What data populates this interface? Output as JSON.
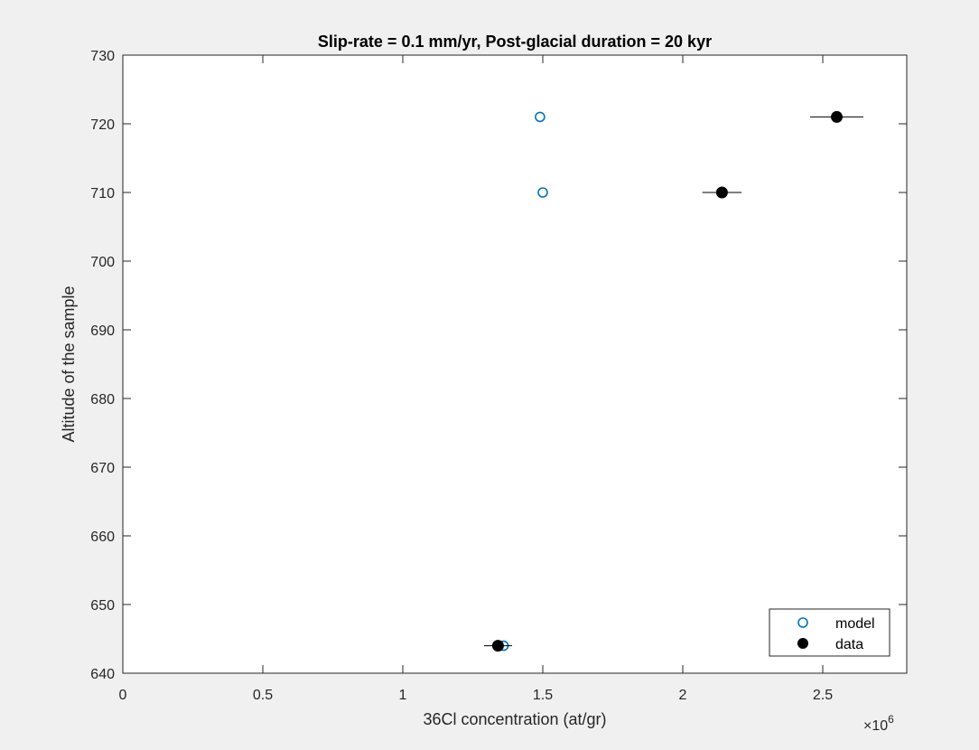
{
  "chart_data": {
    "type": "scatter",
    "title": "Slip-rate = 0.1 mm/yr, Post-glacial duration = 20 kyr",
    "xlabel": "36Cl concentration (at/gr)",
    "ylabel": "Altitude of the sample",
    "x_exponent_label": "×10",
    "x_exponent_power": "6",
    "xlim": [
      0,
      2800000
    ],
    "ylim": [
      640,
      730
    ],
    "xticks": [
      0,
      500000,
      1000000,
      1500000,
      2000000,
      2500000
    ],
    "xtick_labels": [
      "0",
      "0.5",
      "1",
      "1.5",
      "2",
      "2.5"
    ],
    "yticks": [
      640,
      650,
      660,
      670,
      680,
      690,
      700,
      710,
      720,
      730
    ],
    "ytick_labels": [
      "640",
      "650",
      "660",
      "670",
      "680",
      "690",
      "700",
      "710",
      "720",
      "730"
    ],
    "grid": false,
    "legend_position": "bottom-right",
    "series": [
      {
        "name": "model",
        "marker": "open-circle",
        "color": "#0072BD",
        "points": [
          {
            "x": 1360000,
            "y": 644
          },
          {
            "x": 1490000,
            "y": 721
          },
          {
            "x": 1500000,
            "y": 710
          }
        ]
      },
      {
        "name": "data",
        "marker": "filled-circle",
        "color": "#000000",
        "points": [
          {
            "x": 1340000,
            "y": 644,
            "xerr": 50000
          },
          {
            "x": 2140000,
            "y": 710,
            "xerr": 70000
          },
          {
            "x": 2550000,
            "y": 721,
            "xerr": 95000
          }
        ]
      }
    ]
  }
}
